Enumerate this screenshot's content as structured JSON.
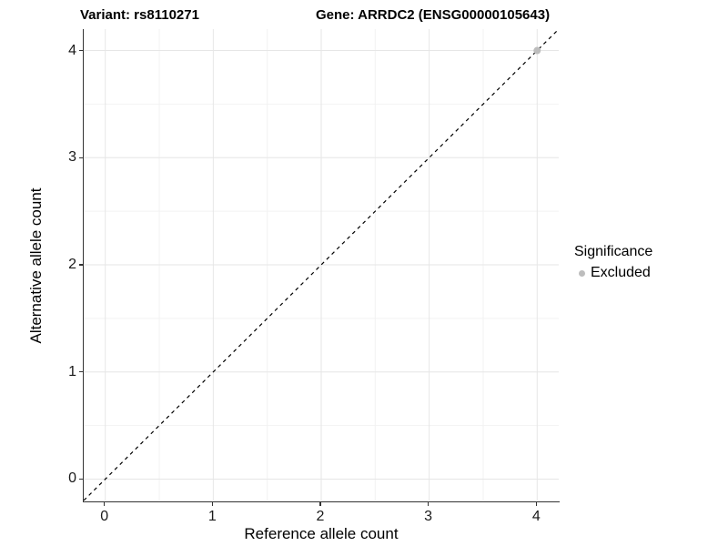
{
  "titles": {
    "variant": "Variant: rs8110271",
    "gene": "Gene: ARRDC2 (ENSG00000105643)"
  },
  "chart_data": {
    "type": "scatter",
    "title_left": "Variant: rs8110271",
    "title_right": "Gene: ARRDC2 (ENSG00000105643)",
    "xlabel": "Reference allele count",
    "ylabel": "Alternative allele count",
    "xlim": [
      -0.2,
      4.2
    ],
    "ylim": [
      -0.2,
      4.2
    ],
    "x_ticks": [
      0,
      1,
      2,
      3,
      4
    ],
    "y_ticks": [
      0,
      1,
      2,
      3,
      4
    ],
    "x_minor_ticks": [
      0.5,
      1.5,
      2.5,
      3.5
    ],
    "y_minor_ticks": [
      0.5,
      1.5,
      2.5,
      3.5
    ],
    "grid": true,
    "identity_line": {
      "style": "dashed",
      "x1": -0.2,
      "y1": -0.2,
      "x2": 4.2,
      "y2": 4.2
    },
    "series": [
      {
        "name": "Excluded",
        "color": "#bdbdbd",
        "points": [
          {
            "x": 4,
            "y": 4
          }
        ]
      }
    ],
    "legend": {
      "title": "Significance",
      "position": "right",
      "entries": [
        {
          "label": "Excluded",
          "color": "#bdbdbd"
        }
      ]
    }
  },
  "colors": {
    "background": "#ffffff",
    "axis_line": "#333333",
    "grid_major": "#e6e6e6",
    "grid_minor": "#f2f2f2",
    "identity_line": "#000000",
    "point": "#bdbdbd",
    "text": "#000000"
  }
}
